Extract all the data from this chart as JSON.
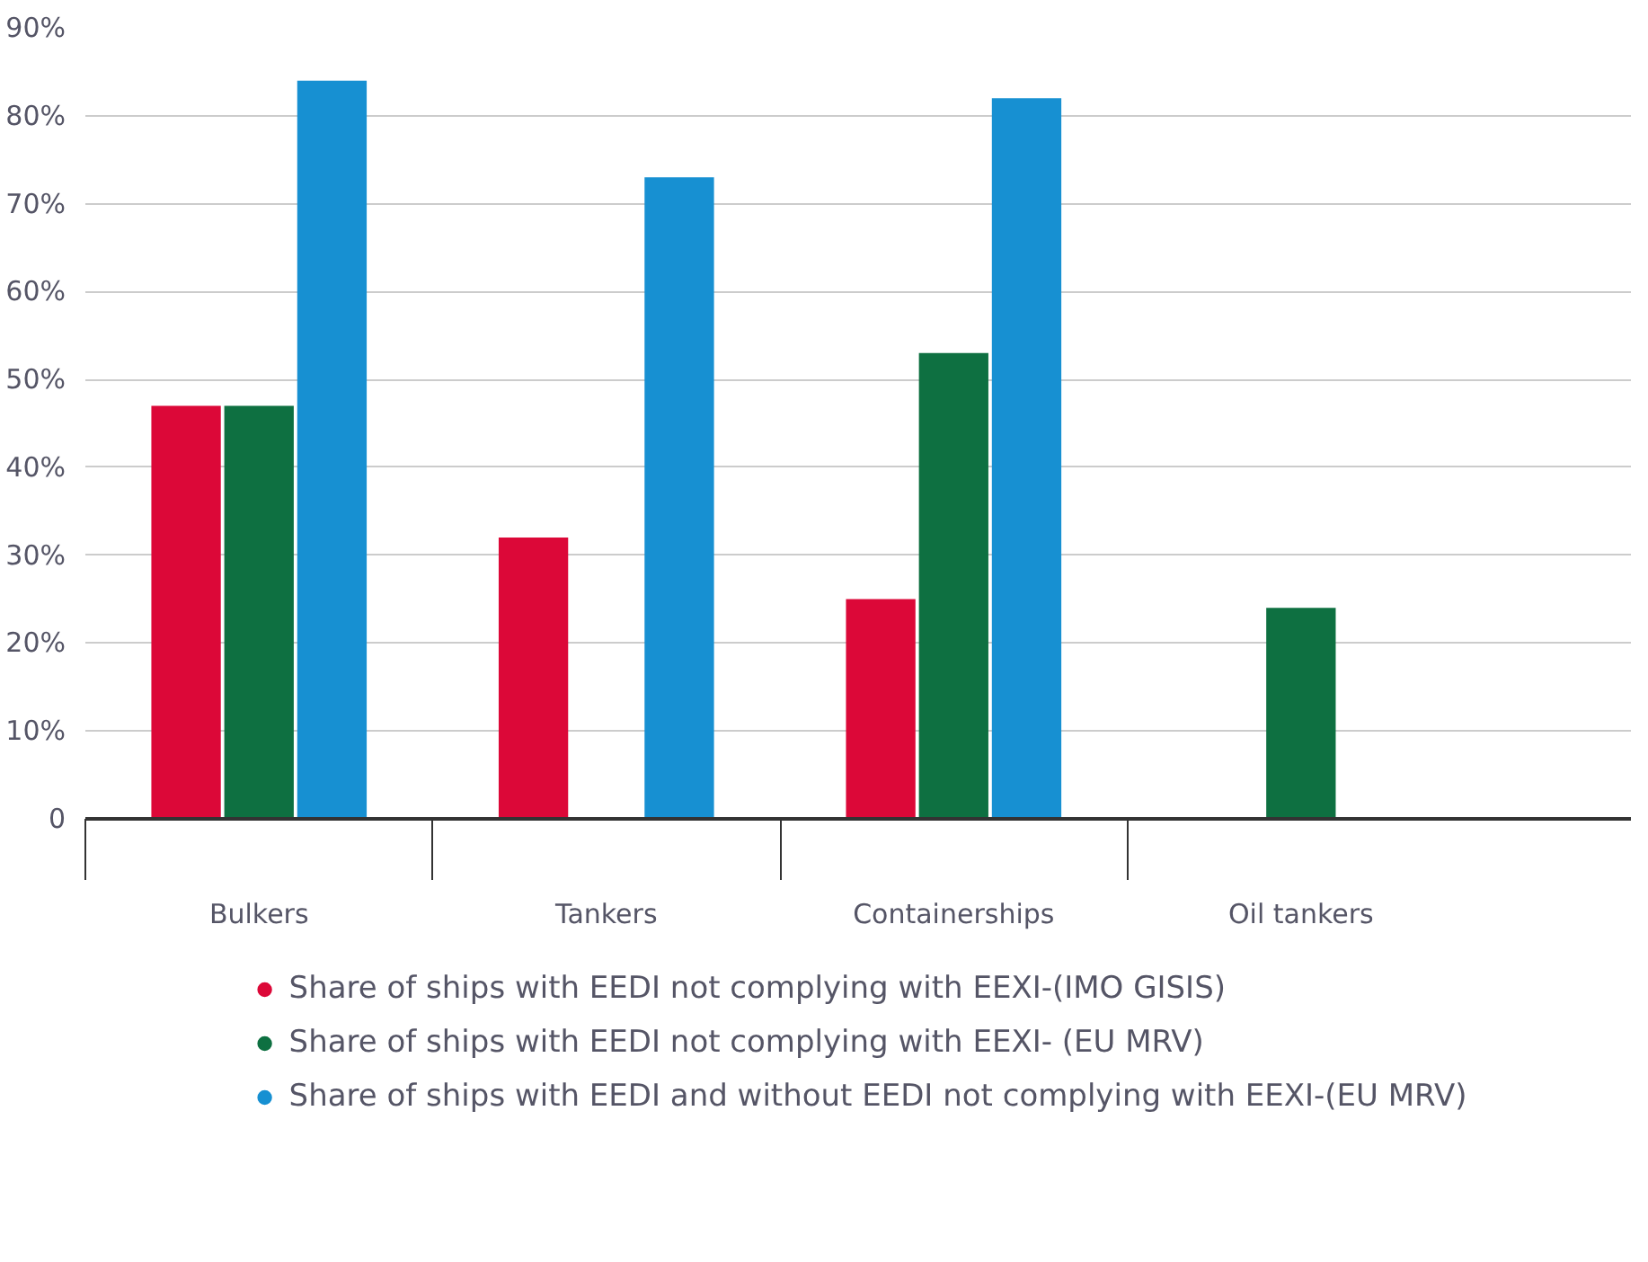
{
  "chart_data": {
    "type": "bar",
    "categories": [
      "Bulkers",
      "Tankers",
      "Containerships",
      "Oil tankers"
    ],
    "series": [
      {
        "name": "Share of ships with EEDI not complying with EEXI-(IMO GISIS)",
        "color": "#dc0838",
        "values": [
          47,
          32,
          25,
          null
        ]
      },
      {
        "name": "Share of ships with EEDI not complying with EEXI- (EU MRV)",
        "color": "#0e7041",
        "values": [
          47,
          null,
          53,
          24
        ]
      },
      {
        "name": "Share of ships with EEDI and without EEDI not complying with EEXI-(EU MRV)",
        "color": "#1790d2",
        "values": [
          84,
          73,
          82,
          null
        ]
      }
    ],
    "ylim": [
      0,
      90
    ],
    "yticks": [
      {
        "value": 0,
        "label": "0"
      },
      {
        "value": 10,
        "label": "10%"
      },
      {
        "value": 20,
        "label": "20%"
      },
      {
        "value": 30,
        "label": "30%"
      },
      {
        "value": 40,
        "label": "40%"
      },
      {
        "value": 50,
        "label": "50%"
      },
      {
        "value": 60,
        "label": "60%"
      },
      {
        "value": 70,
        "label": "70%"
      },
      {
        "value": 80,
        "label": "80%"
      },
      {
        "value": 90,
        "label": "90%"
      }
    ],
    "grid": "y",
    "legend": "bottom"
  }
}
